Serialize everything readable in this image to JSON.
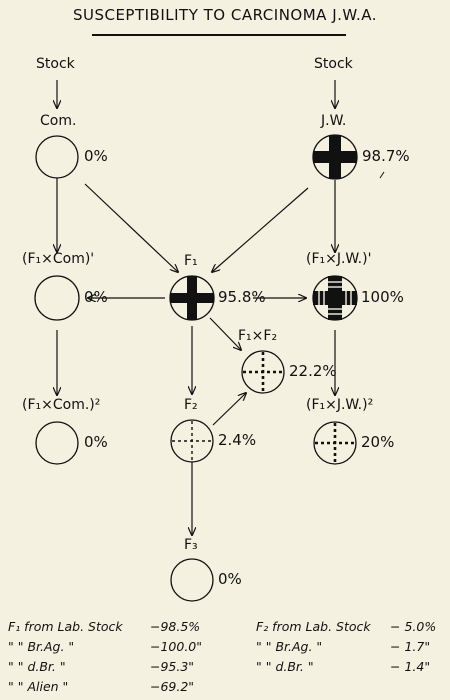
{
  "title": "SUSCEPTIBILITY TO CARCINOMA J.W.A.",
  "nodes": {
    "stock_left": {
      "label": "Stock"
    },
    "stock_right": {
      "label": "Stock"
    },
    "com": {
      "label": "Com.",
      "value": "0%"
    },
    "jw": {
      "label": "J.W.",
      "value": "98.7%"
    },
    "f1xcom": {
      "label": "(F₁×Com)'",
      "value": "0%"
    },
    "f1": {
      "label": "F₁",
      "value": "95.8%"
    },
    "f1xjw": {
      "label": "(F₁×J.W.)'",
      "value": "100%"
    },
    "f1xf2": {
      "label": "F₁×F₂",
      "value": "22.2%"
    },
    "f1xcom2": {
      "label": "(F₁×Com.)²",
      "value": "0%"
    },
    "f2": {
      "label": "F₂",
      "value": "2.4%"
    },
    "f1xjw2": {
      "label": "(F₁×J.W.)²",
      "value": "20%"
    },
    "f3": {
      "label": "F₃",
      "value": "0%"
    }
  },
  "footnotes": {
    "left": [
      {
        "label": "F₁ from Lab. Stock",
        "value": "−98.5%"
      },
      {
        "label": "\"   \"   Br.Ag.   \"",
        "value": "−100.0\""
      },
      {
        "label": "\"   \"   d.Br.    \"",
        "value": "−95.3\""
      },
      {
        "label": "\"   \"   Alien    \"",
        "value": "−69.2\""
      }
    ],
    "right": [
      {
        "label": "F₂ from Lab. Stock",
        "value": "− 5.0%"
      },
      {
        "label": "\"   \"   Br.Ag.   \"",
        "value": "− 1.7\""
      },
      {
        "label": "\"   \"   d.Br.   \"",
        "value": "− 1.4\""
      }
    ]
  }
}
